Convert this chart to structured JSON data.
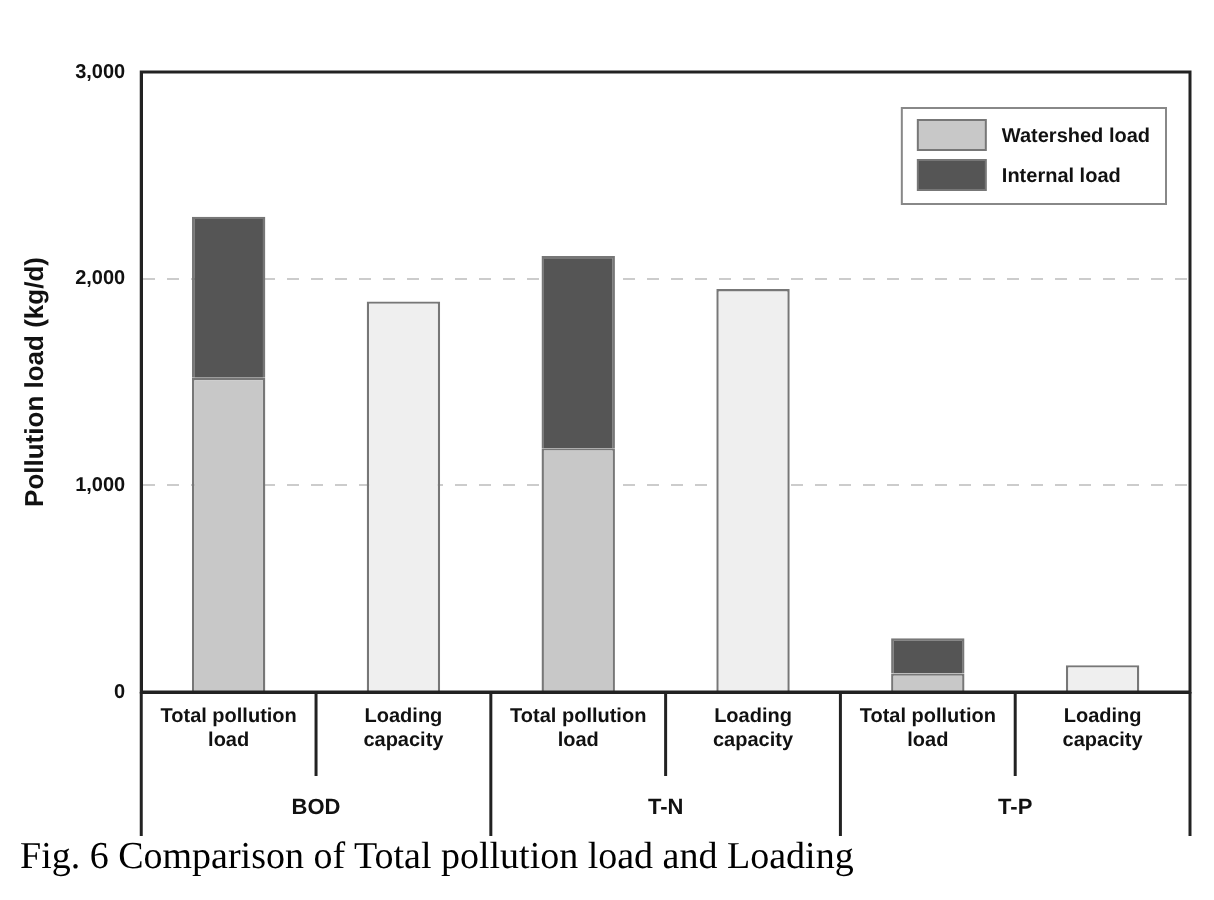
{
  "chart_data": {
    "type": "bar",
    "ylabel": "Pollution load (kg/d)",
    "categories": [
      "Total pollution load",
      "Loading capacity",
      "Total pollution load",
      "Loading capacity",
      "Total pollution load",
      "Loading capacity"
    ],
    "series": [
      {
        "name": "Watershed load",
        "color": "#c8c8c8",
        "values": [
          1520,
          null,
          1180,
          null,
          90,
          null
        ]
      },
      {
        "name": "Internal load",
        "color": "#555555",
        "values": [
          780,
          null,
          930,
          null,
          170,
          null
        ]
      },
      {
        "color": "#efefef",
        "values": [
          null,
          1890,
          null,
          1950,
          null,
          130
        ]
      }
    ],
    "stacked": true,
    "ylim": [
      0,
      3000
    ],
    "yticks": [
      0,
      {
        "value": 1000,
        "label": "1,000"
      },
      {
        "value": 2000,
        "label": "2,000"
      },
      {
        "value": 3000,
        "label": "3,000"
      }
    ],
    "grid": "y",
    "legend": "top right",
    "annotations": [
      "BOD",
      "T-N",
      "T-P",
      "Fig. 6 Comparison of Total pollution load and Loading"
    ]
  }
}
